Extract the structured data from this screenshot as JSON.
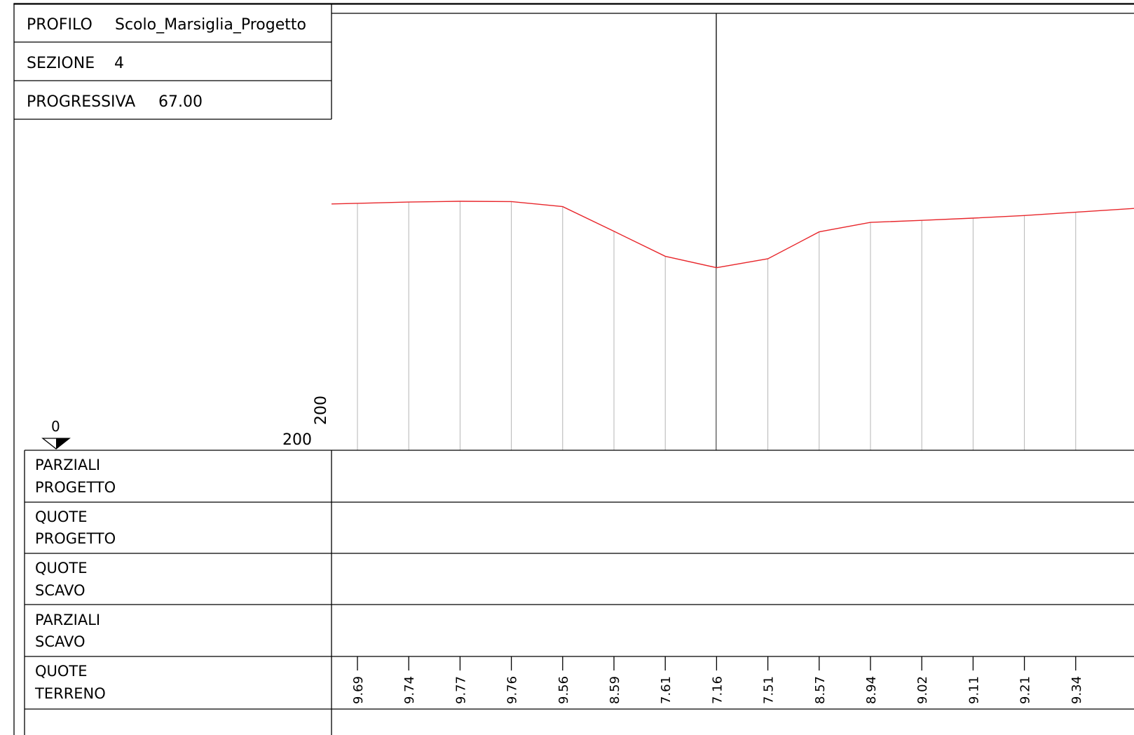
{
  "header": {
    "profilo_label": "PROFILO",
    "profilo_value": "Scolo_Marsiglia_Progetto",
    "sezione_label": "SEZIONE",
    "sezione_value": "4",
    "progressiva_label": "PROGRESSIVA",
    "progressiva_value": "67.00"
  },
  "scale": {
    "zero_label": "0",
    "horizontal_label": "200",
    "vertical_label": "200"
  },
  "rows": [
    {
      "line1": "PARZIALI",
      "line2": "PROGETTO"
    },
    {
      "line1": "QUOTE",
      "line2": "PROGETTO"
    },
    {
      "line1": "QUOTE",
      "line2": "SCAVO"
    },
    {
      "line1": "PARZIALI",
      "line2": "SCAVO"
    },
    {
      "line1": "QUOTE",
      "line2": "TERRENO"
    }
  ],
  "colors": {
    "terrain_line": "#e8262b",
    "grid": "#000000",
    "ordinate": "#b4b4b4"
  },
  "chart_data": {
    "type": "line",
    "quote_terreno": [
      "9.69",
      "9.74",
      "9.77",
      "9.76",
      "9.56",
      "8.59",
      "7.61",
      "7.16",
      "7.51",
      "8.57",
      "8.94",
      "9.02",
      "9.11",
      "9.21",
      "9.34"
    ]
  }
}
